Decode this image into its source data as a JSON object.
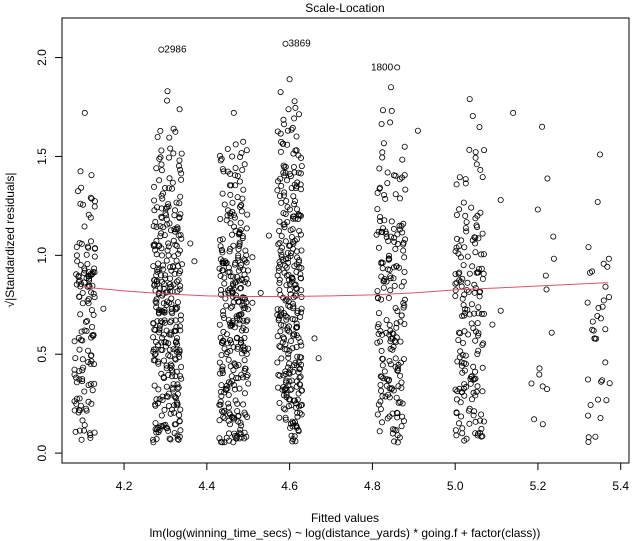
{
  "chart_data": {
    "type": "scatter",
    "title": "Scale-Location",
    "xlabel": "Fitted values",
    "subtitle": "lm(log(winning_time_secs) ~ log(distance_yards) * going.f + factor(class))",
    "ylabel": "√|Standardized residuals|",
    "xlim": [
      4.05,
      5.42
    ],
    "ylim": [
      -0.05,
      2.2
    ],
    "x_ticks": [
      4.2,
      4.4,
      4.6,
      4.8,
      5.0,
      5.2,
      5.4
    ],
    "x_tick_labels": [
      "4.2",
      "4.4",
      "4.6",
      "4.8",
      "5.0",
      "5.2",
      "5.4"
    ],
    "y_ticks": [
      0.0,
      0.5,
      1.0,
      1.5,
      2.0
    ],
    "y_tick_labels": [
      "0.0",
      "0.5",
      "1.0",
      "1.5",
      "2.0"
    ],
    "grid": false,
    "legend": "none",
    "colors": {
      "points": "#000000",
      "smooth": "#df536b"
    },
    "clusters": [
      {
        "x_min": 4.08,
        "x_max": 4.13,
        "n": 130,
        "y_max": 1.72
      },
      {
        "x_min": 4.27,
        "x_max": 4.34,
        "n": 320,
        "y_max": 1.83
      },
      {
        "x_min": 4.43,
        "x_max": 4.5,
        "n": 300,
        "y_max": 1.72
      },
      {
        "x_min": 4.57,
        "x_max": 4.63,
        "n": 300,
        "y_max": 1.89
      },
      {
        "x_min": 4.81,
        "x_max": 4.88,
        "n": 190,
        "y_max": 1.85
      },
      {
        "x_min": 5.0,
        "x_max": 5.07,
        "n": 170,
        "y_max": 1.79
      },
      {
        "x_min": 5.18,
        "x_max": 5.24,
        "n": 14,
        "y_max": 1.65
      },
      {
        "x_min": 5.32,
        "x_max": 5.38,
        "n": 35,
        "y_max": 1.51
      }
    ],
    "extra_points": [
      {
        "x": 4.51,
        "y": 0.76
      },
      {
        "x": 4.51,
        "y": 0.99
      },
      {
        "x": 4.53,
        "y": 0.81
      },
      {
        "x": 4.55,
        "y": 1.1
      },
      {
        "x": 4.66,
        "y": 0.58
      },
      {
        "x": 4.67,
        "y": 0.48
      },
      {
        "x": 4.91,
        "y": 1.63
      },
      {
        "x": 5.09,
        "y": 0.65
      },
      {
        "x": 5.11,
        "y": 0.72
      },
      {
        "x": 5.11,
        "y": 1.28
      },
      {
        "x": 5.14,
        "y": 1.72
      },
      {
        "x": 4.36,
        "y": 1.06
      },
      {
        "x": 4.37,
        "y": 0.97
      },
      {
        "x": 4.15,
        "y": 0.73
      }
    ],
    "outliers": [
      {
        "label": "2986",
        "x": 4.29,
        "y": 2.04,
        "label_side": "right"
      },
      {
        "label": "3869",
        "x": 4.59,
        "y": 2.07,
        "label_side": "right"
      },
      {
        "label": "1800",
        "x": 4.86,
        "y": 1.95,
        "label_side": "left"
      }
    ],
    "smooth_line": {
      "x": [
        4.1,
        4.2,
        4.3,
        4.4,
        4.5,
        4.6,
        4.7,
        4.8,
        4.9,
        5.0,
        5.1,
        5.2,
        5.3,
        5.37
      ],
      "y": [
        0.84,
        0.82,
        0.805,
        0.795,
        0.792,
        0.792,
        0.795,
        0.8,
        0.81,
        0.825,
        0.835,
        0.845,
        0.855,
        0.862
      ]
    }
  }
}
